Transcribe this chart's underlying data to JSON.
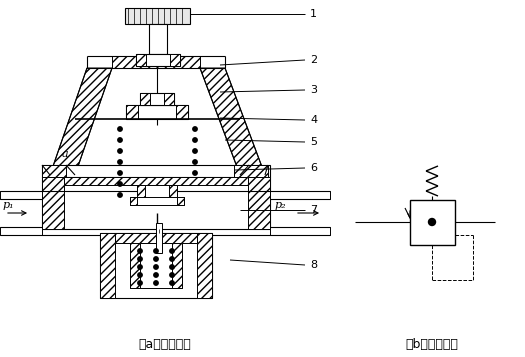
{
  "label_a": "（a）结构原理",
  "label_b": "（b）图形符号",
  "p1_label": "p₁",
  "p2_label": "p₂",
  "a_label": "a",
  "line_color": "#000000",
  "bg_color": "#ffffff",
  "font_size": 9
}
